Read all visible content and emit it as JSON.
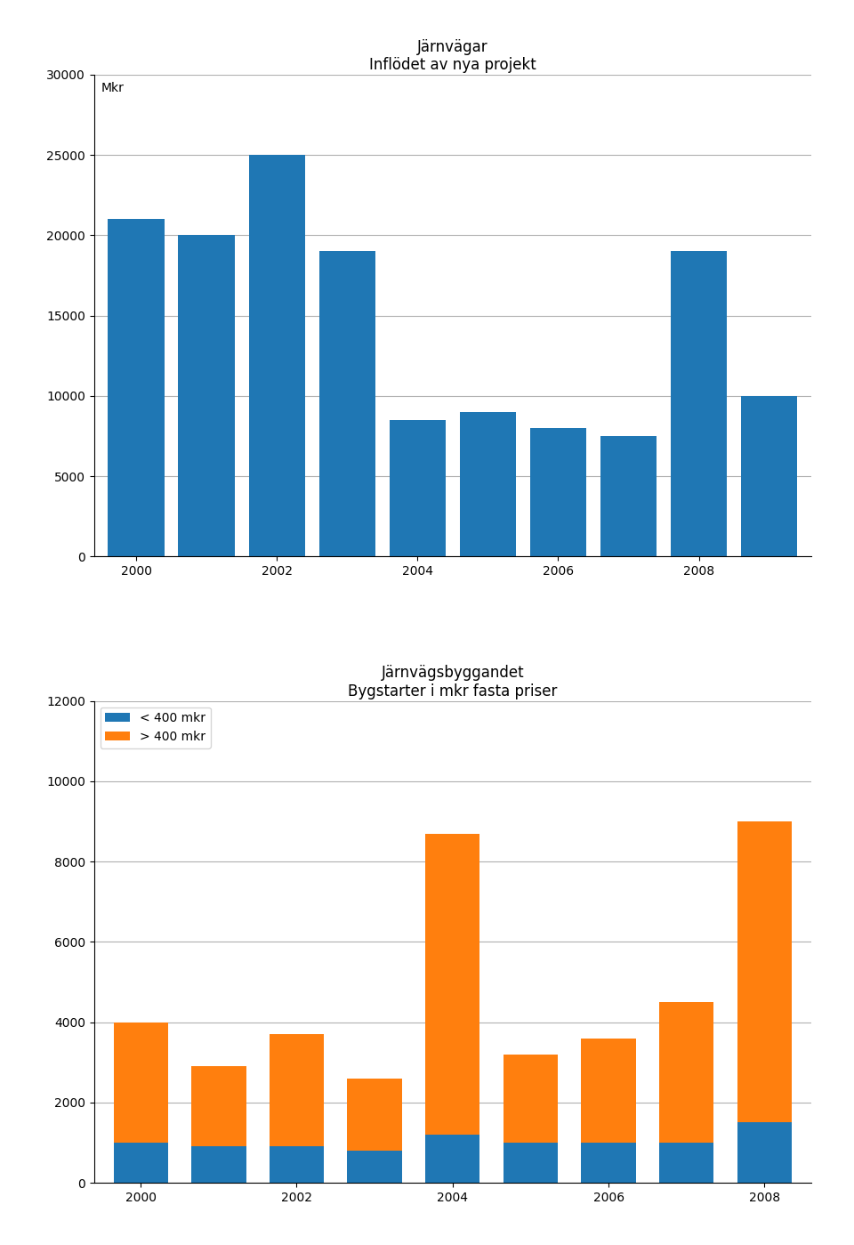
{
  "chart_data": [
    {
      "type": "bar",
      "title": "Järnvägar\nInflödet av nya projekt",
      "categories": [
        "2000",
        null,
        "2002",
        null,
        "2004",
        null,
        "2006",
        null,
        "2008",
        null
      ],
      "values": [
        21000,
        20000,
        25000,
        19000,
        8500,
        9000,
        8000,
        7500,
        19000,
        10000
      ],
      "ylim": [
        0,
        30000
      ],
      "yticks": [
        0,
        5000,
        10000,
        15000,
        20000,
        25000,
        30000
      ],
      "grid": true,
      "annotations": [
        "Mkr"
      ]
    },
    {
      "type": "bar",
      "title": "Järnvägsbyggandet\nBygstarter i mkr fasta priser",
      "categories": [
        "2000",
        null,
        "2002",
        null,
        "2004",
        null,
        "2006",
        null,
        "2008"
      ],
      "stacked": true,
      "series": [
        {
          "name": "< 400 mkr",
          "values": [
            1000,
            900,
            900,
            800,
            1200,
            1000,
            1000,
            1000,
            1500
          ]
        },
        {
          "name": "> 400 mkr",
          "values": [
            3000,
            2000,
            2800,
            1800,
            7500,
            2200,
            2600,
            3500,
            7500
          ]
        }
      ],
      "ylim": [
        0,
        12000
      ],
      "yticks": [
        0,
        2000,
        4000,
        6000,
        8000,
        10000,
        12000
      ],
      "grid": true,
      "legend": "upper left"
    }
  ]
}
